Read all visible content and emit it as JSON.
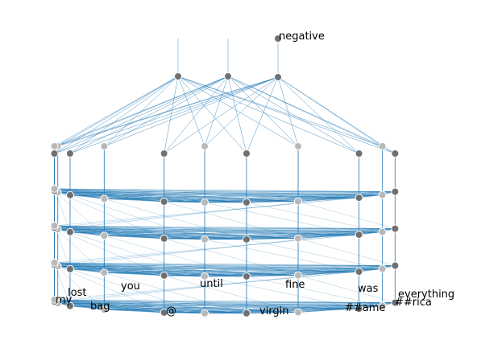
{
  "title": "",
  "output_label": "negative",
  "tokens": [
    "my",
    "lost",
    "bag",
    "you",
    "@",
    "until",
    "virgin",
    "fine",
    "##ame",
    "was",
    "##rica",
    "everything"
  ],
  "layers": 5,
  "attention_heads_top": 3,
  "colors": {
    "edge": "#1f77b4",
    "node": "#707070",
    "node_faded": "#b8b8b8",
    "node_stroke": "#ffffff"
  }
}
